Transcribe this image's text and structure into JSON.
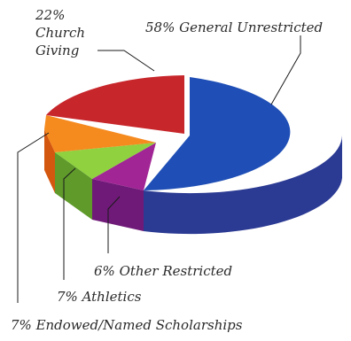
{
  "chart_data": {
    "type": "pie",
    "title": "",
    "style": "3d-exploded-pie",
    "slices": [
      {
        "label": "General Unrestricted",
        "value": 58,
        "text": "58% General Unrestricted",
        "color": "#1f4fb6",
        "side_color": "#2b3a93"
      },
      {
        "label": "Other Restricted",
        "value": 6,
        "text": "6% Other Restricted",
        "color": "#a12595",
        "side_color": "#6f1a78"
      },
      {
        "label": "Athletics",
        "value": 7,
        "text": "7%  Athletics",
        "color": "#8fd13f",
        "side_color": "#5f9a2b"
      },
      {
        "label": "Endowed/Named Scholarships",
        "value": 7,
        "text": "7% Endowed/Named Scholarships",
        "color": "#f58a1f",
        "side_color": "#d4570f"
      },
      {
        "label": "Church Giving",
        "value": 22,
        "text_lines": [
          "22%",
          "Church",
          "Giving"
        ],
        "color": "#c7262b",
        "side_color": "#8c1c1e"
      }
    ]
  }
}
